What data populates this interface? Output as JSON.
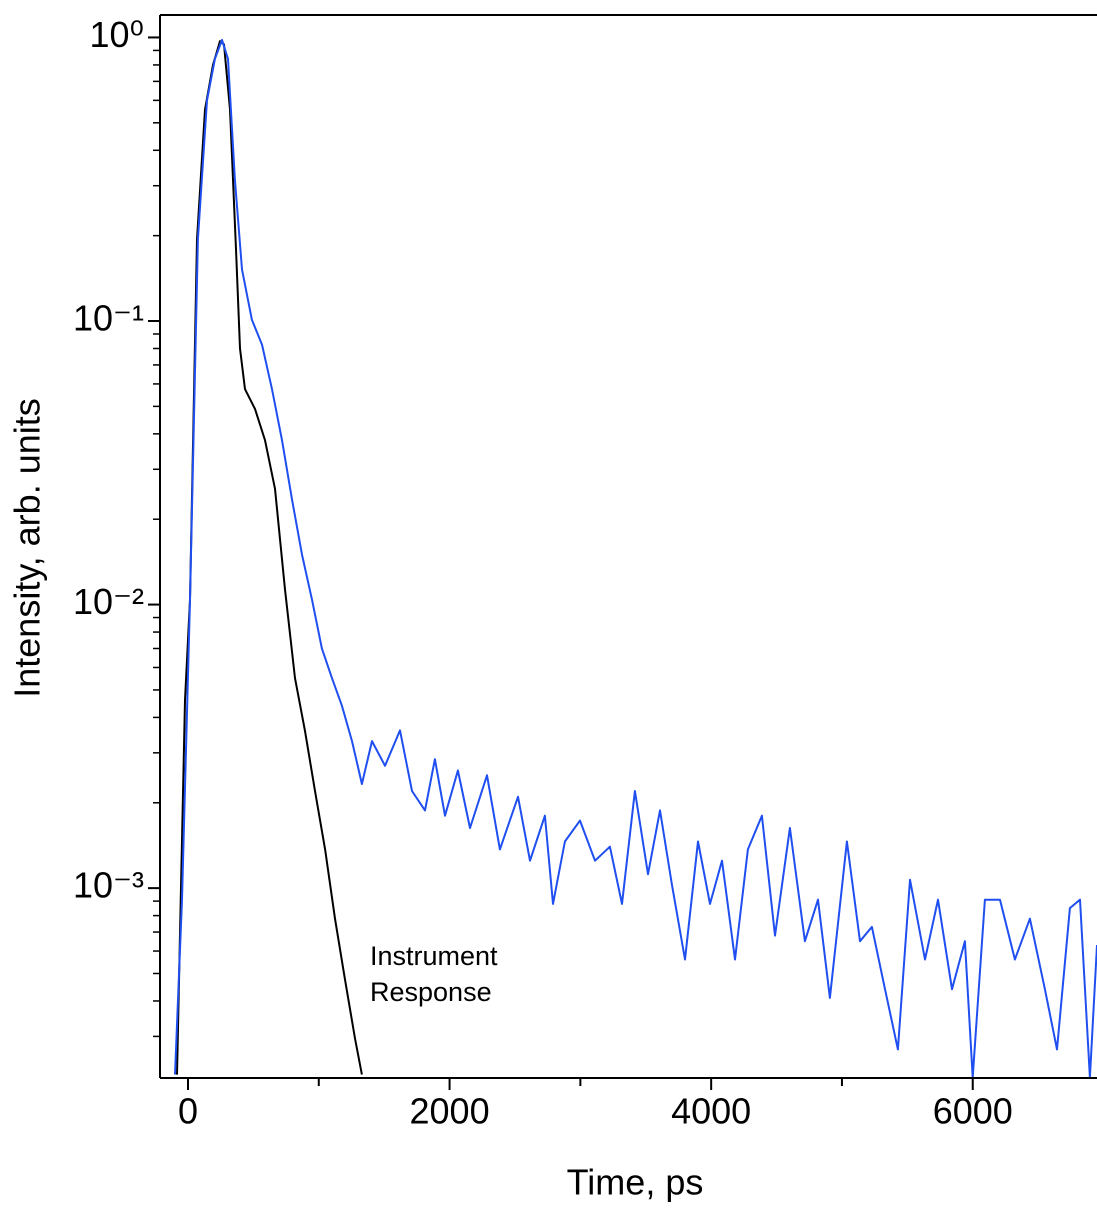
{
  "chart_data": {
    "type": "line",
    "xlabel": "Time, ps",
    "ylabel": "Intensity, arb. units",
    "log_y": true,
    "xlim": [
      -214,
      6950
    ],
    "ylim": [
      0.000214,
      1.2
    ],
    "xticks": [
      0,
      2000,
      4000,
      6000
    ],
    "xminorticks": [
      1000,
      3000,
      5000
    ],
    "yticks": [
      {
        "value": 1,
        "label": "10⁰"
      },
      {
        "value": 0.1,
        "label": "10⁻¹"
      },
      {
        "value": 0.01,
        "label": "10⁻²"
      },
      {
        "value": 0.001,
        "label": "10⁻³"
      }
    ],
    "yminorticks": [
      0.0003,
      0.0004,
      0.0005,
      0.0006,
      0.0007,
      0.0008,
      0.0009,
      0.002,
      0.003,
      0.004,
      0.005,
      0.006,
      0.007,
      0.008,
      0.009,
      0.02,
      0.03,
      0.04,
      0.05,
      0.06,
      0.07,
      0.08,
      0.09,
      0.2,
      0.3,
      0.4,
      0.5,
      0.6,
      0.7,
      0.8,
      0.9
    ],
    "annotation": [
      "Instrument",
      "Response"
    ],
    "series": [
      {
        "color": "#000000",
        "x": [
          -84,
          -23,
          15,
          69,
          130,
          191,
          245,
          275,
          321,
          367,
          398,
          436,
          512,
          589,
          665,
          742,
          818,
          894,
          971,
          1048,
          1124,
          1200,
          1277,
          1330
        ],
        "values": [
          0.00022,
          0.0046,
          0.0104,
          0.194,
          0.557,
          0.8,
          0.97,
          0.945,
          0.557,
          0.179,
          0.08,
          0.0575,
          0.049,
          0.038,
          0.0256,
          0.0113,
          0.0055,
          0.0036,
          0.0022,
          0.00137,
          0.00078,
          0.000478,
          0.000295,
          0.00022
        ]
      },
      {
        "color": "#1f4ff0",
        "x": [
          -99,
          -46,
          15,
          76,
          145,
          206,
          260,
          306,
          359,
          413,
          489,
          566,
          642,
          719,
          795,
          872,
          948,
          1024,
          1101,
          1177,
          1254,
          1330,
          1407,
          1506,
          1621,
          1713,
          1812,
          1888,
          1965,
          2064,
          2156,
          2286,
          2385,
          2523,
          2615,
          2729,
          2791,
          2882,
          2997,
          3112,
          3226,
          3318,
          3417,
          3517,
          3609,
          3700,
          3800,
          3899,
          3991,
          4083,
          4182,
          4281,
          4388,
          4488,
          4602,
          4717,
          4817,
          4908,
          5038,
          5138,
          5229,
          5329,
          5428,
          5520,
          5635,
          5734,
          5841,
          5940,
          6000,
          6093,
          6208,
          6322,
          6437,
          6552,
          6644,
          6743,
          6820,
          6896,
          6950
        ],
        "values": [
          0.00022,
          0.00091,
          0.0104,
          0.194,
          0.6,
          0.84,
          0.98,
          0.84,
          0.315,
          0.152,
          0.101,
          0.0826,
          0.0575,
          0.038,
          0.0235,
          0.015,
          0.0104,
          0.007,
          0.0055,
          0.0044,
          0.0033,
          0.00233,
          0.0033,
          0.0027,
          0.0036,
          0.0022,
          0.00188,
          0.00285,
          0.0018,
          0.0026,
          0.00163,
          0.0025,
          0.00137,
          0.0021,
          0.00125,
          0.0018,
          0.00088,
          0.00146,
          0.00173,
          0.00125,
          0.0014,
          0.00088,
          0.0022,
          0.00112,
          0.00188,
          0.00103,
          0.00056,
          0.00146,
          0.00088,
          0.00125,
          0.00056,
          0.00137,
          0.0018,
          0.00068,
          0.00163,
          0.00065,
          0.00091,
          0.00041,
          0.00146,
          0.00065,
          0.00073,
          0.00044,
          0.00027,
          0.00107,
          0.00056,
          0.00091,
          0.00044,
          0.00065,
          0.000215,
          0.00091,
          0.00091,
          0.00056,
          0.00078,
          0.00044,
          0.00027,
          0.00085,
          0.00091,
          0.000215,
          0.00063
        ]
      }
    ]
  }
}
